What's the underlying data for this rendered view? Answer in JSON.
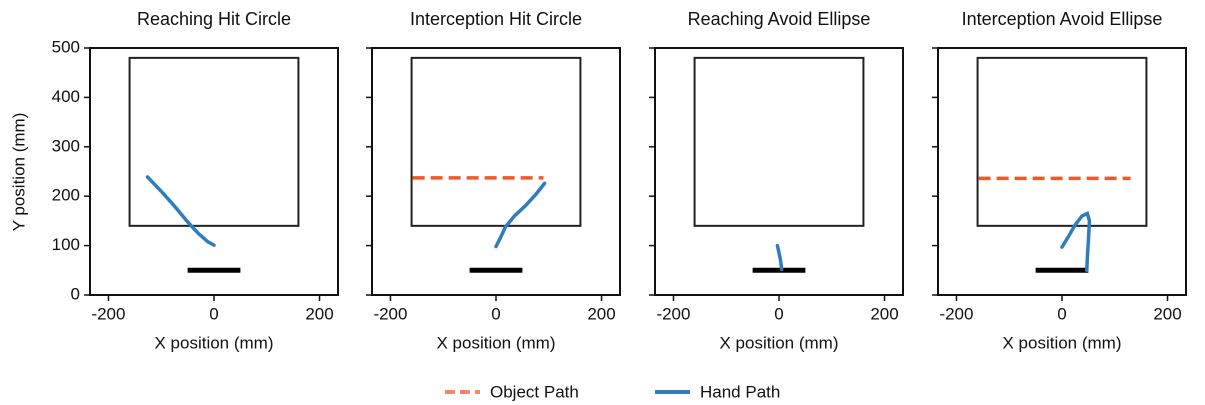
{
  "chart_data": [
    {
      "type": "line",
      "title": "Reaching Hit Circle",
      "xlabel": "X position (mm)",
      "ylabel": "Y position (mm)",
      "xlim": [
        -235,
        235
      ],
      "ylim": [
        0,
        500
      ],
      "xticks": [
        -200,
        0,
        200
      ],
      "yticks": [
        0,
        100,
        200,
        300,
        400,
        500
      ],
      "boundary": {
        "x": [
          -160,
          160
        ],
        "y": [
          140,
          480
        ]
      },
      "start_bar": {
        "x": [
          -50,
          50
        ],
        "y": 50
      },
      "series": [
        {
          "name": "Hand Path",
          "color": "#2e7dbf",
          "dashed": false,
          "x": [
            -126,
            -100,
            -75,
            -50,
            -30,
            -12,
            0
          ],
          "values": [
            239,
            210,
            180,
            148,
            125,
            108,
            101
          ]
        }
      ]
    },
    {
      "type": "line",
      "title": "Interception Hit Circle",
      "xlabel": "X position (mm)",
      "xlim": [
        -235,
        235
      ],
      "ylim": [
        0,
        500
      ],
      "xticks": [
        -200,
        0,
        200
      ],
      "yticks": [
        0,
        100,
        200,
        300,
        400,
        500
      ],
      "boundary": {
        "x": [
          -160,
          160
        ],
        "y": [
          140,
          480
        ]
      },
      "start_bar": {
        "x": [
          -50,
          50
        ],
        "y": 50
      },
      "series": [
        {
          "name": "Object Path",
          "color": "#ee5a2a",
          "dashed": true,
          "x": [
            -158,
            90
          ],
          "values": [
            237,
            237
          ]
        },
        {
          "name": "Hand Path",
          "color": "#2e7dbf",
          "dashed": false,
          "x": [
            0,
            8,
            18,
            35,
            55,
            75,
            92
          ],
          "values": [
            98,
            115,
            138,
            160,
            180,
            203,
            226
          ]
        }
      ]
    },
    {
      "type": "line",
      "title": "Reaching Avoid Ellipse",
      "xlabel": "X position (mm)",
      "xlim": [
        -235,
        235
      ],
      "ylim": [
        0,
        500
      ],
      "xticks": [
        -200,
        0,
        200
      ],
      "yticks": [
        0,
        100,
        200,
        300,
        400,
        500
      ],
      "boundary": {
        "x": [
          -160,
          160
        ],
        "y": [
          140,
          480
        ]
      },
      "start_bar": {
        "x": [
          -50,
          50
        ],
        "y": 50
      },
      "series": [
        {
          "name": "Hand Path",
          "color": "#2e7dbf",
          "dashed": false,
          "x": [
            -3,
            0,
            3,
            5
          ],
          "values": [
            100,
            85,
            70,
            52
          ]
        }
      ]
    },
    {
      "type": "line",
      "title": "Interception Avoid Ellipse",
      "xlabel": "X position (mm)",
      "xlim": [
        -235,
        235
      ],
      "ylim": [
        0,
        500
      ],
      "xticks": [
        -200,
        0,
        200
      ],
      "yticks": [
        0,
        100,
        200,
        300,
        400,
        500
      ],
      "boundary": {
        "x": [
          -160,
          160
        ],
        "y": [
          140,
          480
        ]
      },
      "start_bar": {
        "x": [
          -50,
          50
        ],
        "y": 50
      },
      "series": [
        {
          "name": "Object Path",
          "color": "#ee5a2a",
          "dashed": true,
          "x": [
            -158,
            130
          ],
          "values": [
            236,
            236
          ]
        },
        {
          "name": "Hand Path",
          "color": "#2e7dbf",
          "dashed": false,
          "x": [
            0,
            12,
            25,
            38,
            48,
            52,
            50,
            48,
            47
          ],
          "values": [
            97,
            118,
            142,
            160,
            165,
            150,
            110,
            75,
            50
          ]
        }
      ]
    }
  ]
}
